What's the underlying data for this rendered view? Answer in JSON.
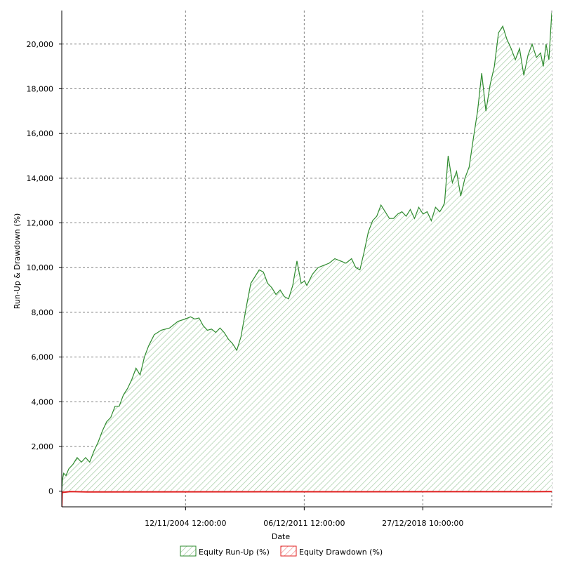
{
  "chart_data": {
    "type": "area",
    "xlabel": "Date",
    "ylabel": "Run-Up & Drawdown (%)",
    "ylim": [
      -700,
      21500
    ],
    "y_ticks": [
      0,
      2000,
      4000,
      6000,
      8000,
      10000,
      12000,
      14000,
      16000,
      18000,
      20000
    ],
    "y_tick_labels": [
      "0",
      "2,000",
      "4,000",
      "6,000",
      "8,000",
      "10,000",
      "12,000",
      "14,000",
      "16,000",
      "18,000",
      "20,000"
    ],
    "xlim": [
      "1997-07-01",
      "2026-09-01"
    ],
    "x_ticks": [
      "2004-11-12T12:00:00",
      "2011-12-06T12:00:00",
      "2018-12-27T10:00:00"
    ],
    "x_tick_labels": [
      "12/11/2004 12:00:00",
      "06/12/2011 12:00:00",
      "27/12/2018 10:00:00"
    ],
    "grid": true,
    "legend_position": "bottom",
    "series": [
      {
        "name": "Equity Run-Up (%)",
        "color": "#2e8b2e",
        "fill": "hatched-green",
        "x": [
          "1997-07-01",
          "1997-07-14",
          "1997-08-11",
          "1997-10-01",
          "1997-12-01",
          "1998-03-01",
          "1998-06-01",
          "1998-09-01",
          "1998-12-01",
          "1999-03-01",
          "1999-06-01",
          "1999-09-01",
          "1999-12-01",
          "2000-03-01",
          "2000-06-01",
          "2000-09-01",
          "2000-12-01",
          "2001-03-01",
          "2001-06-01",
          "2001-09-01",
          "2001-12-01",
          "2002-03-01",
          "2002-06-01",
          "2002-09-01",
          "2003-01-01",
          "2003-06-01",
          "2003-12-01",
          "2004-06-01",
          "2004-11-01",
          "2005-03-01",
          "2005-06-01",
          "2005-09-01",
          "2005-12-01",
          "2006-03-01",
          "2006-06-01",
          "2006-09-01",
          "2006-12-01",
          "2007-03-01",
          "2007-06-01",
          "2007-09-01",
          "2007-12-01",
          "2008-03-01",
          "2008-05-01",
          "2008-07-01",
          "2008-10-01",
          "2009-01-01",
          "2009-04-01",
          "2009-07-01",
          "2009-10-01",
          "2010-01-01",
          "2010-04-01",
          "2010-07-01",
          "2010-10-01",
          "2011-01-01",
          "2011-04-01",
          "2011-07-01",
          "2011-10-01",
          "2011-12-15",
          "2012-02-01",
          "2012-06-01",
          "2012-10-01",
          "2013-02-01",
          "2013-06-01",
          "2013-10-01",
          "2014-02-01",
          "2014-06-01",
          "2014-10-01",
          "2015-01-01",
          "2015-04-01",
          "2015-07-01",
          "2015-10-01",
          "2016-01-01",
          "2016-04-01",
          "2016-07-01",
          "2016-10-01",
          "2017-01-01",
          "2017-04-01",
          "2017-07-01",
          "2017-10-01",
          "2018-01-01",
          "2018-04-01",
          "2018-07-01",
          "2018-10-01",
          "2019-01-01",
          "2019-04-01",
          "2019-07-01",
          "2019-10-01",
          "2020-01-01",
          "2020-03-01",
          "2020-04-15",
          "2020-07-01",
          "2020-10-01",
          "2021-01-01",
          "2021-04-01",
          "2021-07-01",
          "2021-10-01",
          "2022-01-01",
          "2022-04-01",
          "2022-07-01",
          "2022-10-01",
          "2023-01-01",
          "2023-04-01",
          "2023-07-01",
          "2023-10-01",
          "2024-01-01",
          "2024-04-01",
          "2024-07-01",
          "2024-10-01",
          "2025-01-01",
          "2025-04-01",
          "2025-07-01",
          "2025-10-01",
          "2026-01-01",
          "2026-03-01",
          "2026-05-01",
          "2026-07-01",
          "2026-09-01"
        ],
        "values": [
          0,
          500,
          800,
          700,
          1000,
          1200,
          1500,
          1300,
          1500,
          1300,
          1800,
          2200,
          2700,
          3100,
          3300,
          3800,
          3800,
          4300,
          4600,
          5000,
          5500,
          5200,
          6000,
          6500,
          7000,
          7200,
          7300,
          7600,
          7700,
          7800,
          7700,
          7750,
          7400,
          7200,
          7250,
          7100,
          7300,
          7100,
          6800,
          6600,
          6300,
          6900,
          7600,
          8300,
          9300,
          9600,
          9900,
          9800,
          9300,
          9100,
          8800,
          9000,
          8700,
          8600,
          9200,
          10300,
          9300,
          9400,
          9200,
          9700,
          10000,
          10100,
          10200,
          10400,
          10300,
          10200,
          10400,
          10000,
          9900,
          10700,
          11600,
          12100,
          12300,
          12800,
          12500,
          12200,
          12200,
          12400,
          12500,
          12300,
          12600,
          12200,
          12700,
          12400,
          12500,
          12100,
          12700,
          12500,
          12700,
          12900,
          15000,
          13800,
          14300,
          13200,
          14000,
          14500,
          15800,
          17000,
          18700,
          17000,
          18200,
          19000,
          20500,
          20800,
          20200,
          19800,
          19300,
          19800,
          18600,
          19500,
          20000,
          19400,
          19600,
          19000,
          20000,
          19300,
          21400
        ]
      },
      {
        "name": "Equity Drawdown (%)",
        "color": "#e02020",
        "fill": "hatched-red",
        "x": [
          "1997-07-01",
          "1997-07-10",
          "1997-08-01",
          "1998-01-01",
          "1999-01-01",
          "2026-09-01"
        ],
        "values": [
          -700,
          -30,
          -50,
          -20,
          -30,
          -20
        ]
      }
    ]
  }
}
